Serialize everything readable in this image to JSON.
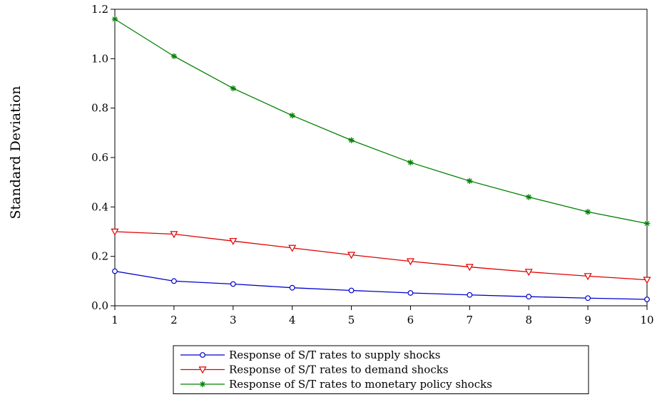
{
  "chart_data": {
    "type": "line",
    "title": "",
    "xlabel": "",
    "ylabel": "Standard Deviation",
    "x": [
      1,
      2,
      3,
      4,
      5,
      6,
      7,
      8,
      9,
      10
    ],
    "xlim": [
      1,
      10
    ],
    "ylim": [
      0.0,
      1.2
    ],
    "xticks": [
      "1",
      "2",
      "3",
      "4",
      "5",
      "6",
      "7",
      "8",
      "9",
      "10"
    ],
    "yticks": [
      "0.0",
      "0.2",
      "0.4",
      "0.6",
      "0.8",
      "1.0",
      "1.2"
    ],
    "grid": false,
    "legend_position": "bottom",
    "series": [
      {
        "name": "Response of S/T rates to supply shocks",
        "color": "#0000cc",
        "marker": "circle",
        "values": [
          0.14,
          0.1,
          0.088,
          0.073,
          0.062,
          0.052,
          0.044,
          0.037,
          0.031,
          0.026
        ]
      },
      {
        "name": "Response of S/T rates to demand shocks",
        "color": "#e00000",
        "marker": "triangle-down",
        "values": [
          0.3,
          0.29,
          0.262,
          0.234,
          0.206,
          0.18,
          0.157,
          0.137,
          0.12,
          0.105
        ]
      },
      {
        "name": "Response of S/T rates to monetary policy shocks",
        "color": "#008000",
        "marker": "asterisk",
        "values": [
          1.16,
          1.01,
          0.88,
          0.77,
          0.67,
          0.58,
          0.505,
          0.44,
          0.38,
          0.333
        ]
      }
    ]
  }
}
